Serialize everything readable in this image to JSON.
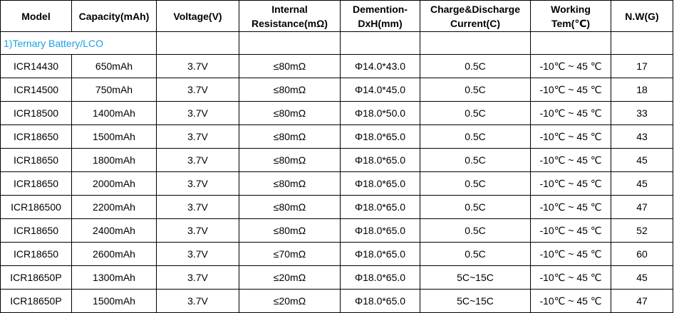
{
  "table": {
    "headers": [
      "Model",
      "Capacity(mAh)",
      "Voltage(V)",
      "Internal Resistance(mΩ)",
      "Demention-DxH(mm)",
      "Charge&Discharge Current(C)",
      "Working Tem(℃)",
      "N.W(G)"
    ],
    "section_label": "1)Ternary Battery/LCO",
    "section_color": "#1aa0e8",
    "rows": [
      [
        "ICR14430",
        "650mAh",
        "3.7V",
        "≤80mΩ",
        "Φ14.0*43.0",
        "0.5C",
        "-10℃ ~ 45 ℃",
        "17"
      ],
      [
        "ICR14500",
        "750mAh",
        "3.7V",
        "≤80mΩ",
        "Φ14.0*45.0",
        "0.5C",
        "-10℃ ~ 45 ℃",
        "18"
      ],
      [
        "ICR18500",
        "1400mAh",
        "3.7V",
        "≤80mΩ",
        "Φ18.0*50.0",
        "0.5C",
        "-10℃ ~ 45 ℃",
        "33"
      ],
      [
        "ICR18650",
        "1500mAh",
        "3.7V",
        "≤80mΩ",
        "Φ18.0*65.0",
        "0.5C",
        "-10℃ ~ 45 ℃",
        "43"
      ],
      [
        "ICR18650",
        "1800mAh",
        "3.7V",
        "≤80mΩ",
        "Φ18.0*65.0",
        "0.5C",
        "-10℃ ~ 45 ℃",
        "45"
      ],
      [
        "ICR18650",
        "2000mAh",
        "3.7V",
        "≤80mΩ",
        "Φ18.0*65.0",
        "0.5C",
        "-10℃ ~ 45 ℃",
        "45"
      ],
      [
        "ICR186500",
        "2200mAh",
        "3.7V",
        "≤80mΩ",
        "Φ18.0*65.0",
        "0.5C",
        "-10℃ ~ 45 ℃",
        "47"
      ],
      [
        "ICR18650",
        "2400mAh",
        "3.7V",
        "≤80mΩ",
        "Φ18.0*65.0",
        "0.5C",
        "-10℃ ~ 45 ℃",
        "52"
      ],
      [
        "ICR18650",
        "2600mAh",
        "3.7V",
        "≤70mΩ",
        "Φ18.0*65.0",
        "0.5C",
        "-10℃ ~ 45 ℃",
        "60"
      ],
      [
        "ICR18650P",
        "1300mAh",
        "3.7V",
        "≤20mΩ",
        "Φ18.0*65.0",
        "5C~15C",
        "-10℃ ~ 45 ℃",
        "45"
      ],
      [
        "ICR18650P",
        "1500mAh",
        "3.7V",
        "≤20mΩ",
        "Φ18.0*65.0",
        "5C~15C",
        "-10℃ ~ 45 ℃",
        "47"
      ]
    ]
  }
}
